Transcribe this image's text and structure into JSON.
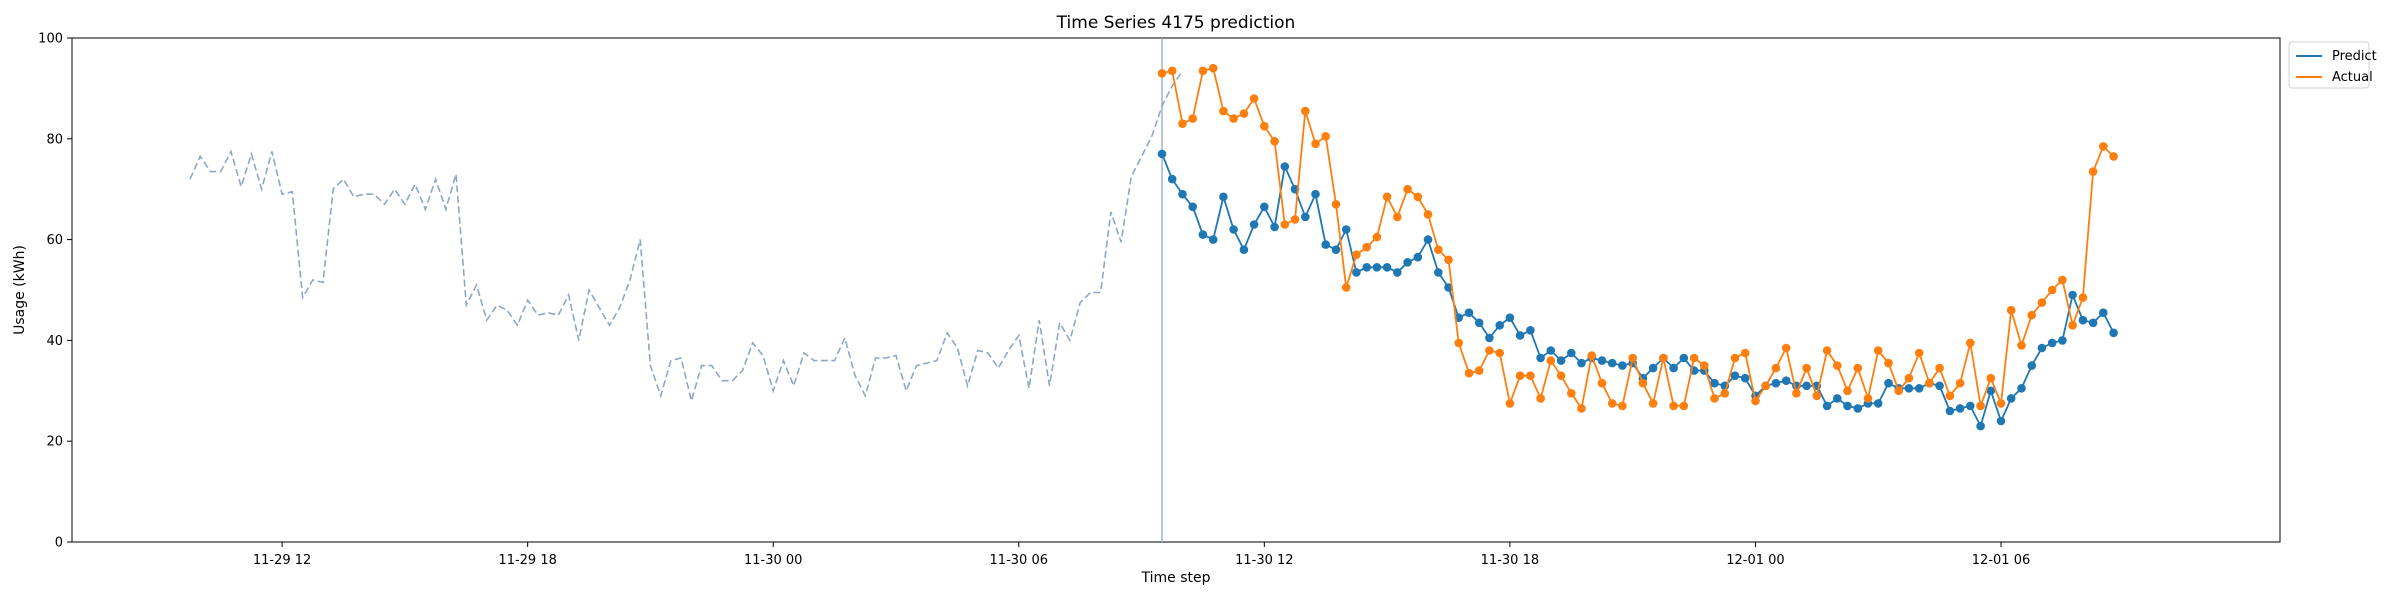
{
  "chart_data": {
    "type": "line",
    "title": "Time Series 4175 prediction",
    "xlabel": "Time step",
    "ylabel": "Usage (kWh)",
    "ylim": [
      0,
      100
    ],
    "yticks": [
      0,
      20,
      40,
      60,
      80,
      100
    ],
    "xlim": [
      "2023-11-29 06:52",
      "2023-12-01 12:49"
    ],
    "xticks": [
      {
        "label": "11-29 12",
        "t": "2023-11-29 12:00"
      },
      {
        "label": "11-29 18",
        "t": "2023-11-29 18:00"
      },
      {
        "label": "11-30 00",
        "t": "2023-11-30 00:00"
      },
      {
        "label": "11-30 06",
        "t": "2023-11-30 06:00"
      },
      {
        "label": "11-30 12",
        "t": "2023-11-30 12:00"
      },
      {
        "label": "11-30 18",
        "t": "2023-11-30 18:00"
      },
      {
        "label": "12-01 00",
        "t": "2023-12-01 00:00"
      },
      {
        "label": "12-01 06",
        "t": "2023-12-01 06:00"
      }
    ],
    "grid": false,
    "legend_position": "outside top-right",
    "vline_t": "2023-11-30 09:30",
    "colors": {
      "history": "#8ea7c8",
      "predict": "#1f77b4",
      "actual": "#ff7f0e",
      "vline": "#8ea7c8"
    },
    "history": {
      "start": "2023-11-29 09:45",
      "step_minutes": 15,
      "values": [
        72,
        76.5,
        73.5,
        73.5,
        77.5,
        70.5,
        77,
        70,
        77.5,
        69,
        69.5,
        48.5,
        52,
        51.5,
        70,
        72,
        68.5,
        69,
        69,
        67,
        70,
        67,
        71,
        66,
        72,
        66,
        73,
        47,
        51,
        44,
        47,
        46,
        43,
        48,
        45,
        45.5,
        45,
        49,
        40,
        50,
        46.5,
        43,
        46.5,
        52,
        60,
        35,
        29,
        36,
        36.5,
        28,
        35,
        35,
        32,
        32,
        34,
        39.5,
        37,
        30,
        36,
        31,
        37.5,
        36,
        36,
        36,
        40.5,
        33,
        29,
        36.5,
        36.5,
        37,
        30,
        35,
        35.5,
        36,
        41.5,
        38.5,
        31,
        38,
        37.5,
        34.5,
        38,
        41,
        30.5,
        44,
        31,
        43.5,
        40,
        47.5,
        49.5,
        49.5,
        65.5,
        59.5,
        72.5,
        76.5,
        80.5,
        86.5,
        90.5,
        93.5
      ]
    },
    "series": [
      {
        "name": "Predict",
        "start": "2023-11-30 09:30",
        "step_minutes": 15,
        "values": [
          77,
          72,
          69,
          66.5,
          61,
          60,
          68.5,
          62,
          58,
          63,
          66.5,
          62.5,
          74.5,
          70,
          64.5,
          69,
          59,
          58,
          62,
          53.5,
          54.5,
          54.5,
          54.5,
          53.5,
          55.5,
          56.5,
          60,
          53.5,
          50.5,
          44.5,
          45.5,
          43.5,
          40.5,
          43,
          44.5,
          41,
          42,
          36.5,
          38,
          36,
          37.5,
          35.5,
          36.5,
          36,
          35.5,
          35,
          35.5,
          32.5,
          34.5,
          36.5,
          34.5,
          36.5,
          34,
          34,
          31.5,
          31,
          33,
          32.5,
          29,
          31,
          31.5,
          32,
          31,
          31,
          31,
          27,
          28.5,
          27,
          26.5,
          27.5,
          27.5,
          31.5,
          30.5,
          30.5,
          30.5,
          31.5,
          31,
          26,
          26.5,
          27,
          23,
          30,
          24,
          28.5,
          30.5,
          35,
          38.5,
          39.5,
          40,
          49,
          44,
          43.5,
          45.5,
          41.5
        ]
      },
      {
        "name": "Actual",
        "start": "2023-11-30 09:30",
        "step_minutes": 15,
        "values": [
          93,
          93.5,
          83,
          84,
          93.5,
          94,
          85.5,
          84,
          85,
          88,
          82.5,
          79.5,
          63,
          64,
          85.5,
          79,
          80.5,
          67,
          50.5,
          57,
          58.5,
          60.5,
          68.5,
          64.5,
          70,
          68.5,
          65,
          58,
          56,
          39.5,
          33.5,
          34,
          38,
          37.5,
          27.5,
          33,
          33,
          28.5,
          36,
          33,
          29.5,
          26.5,
          37,
          31.5,
          27.5,
          27,
          36.5,
          31.5,
          27.5,
          36.5,
          27,
          27,
          36.5,
          35,
          28.5,
          29.5,
          36.5,
          37.5,
          28,
          31,
          34.5,
          38.5,
          29.5,
          34.5,
          29,
          38,
          35,
          30,
          34.5,
          28.5,
          38,
          35.5,
          30,
          32.5,
          37.5,
          31.5,
          34.5,
          29,
          31.5,
          39.5,
          27,
          32.5,
          27.5,
          46,
          39,
          45,
          47.5,
          50,
          52,
          43,
          48.5,
          73.5,
          78.5,
          76.5
        ]
      }
    ]
  }
}
